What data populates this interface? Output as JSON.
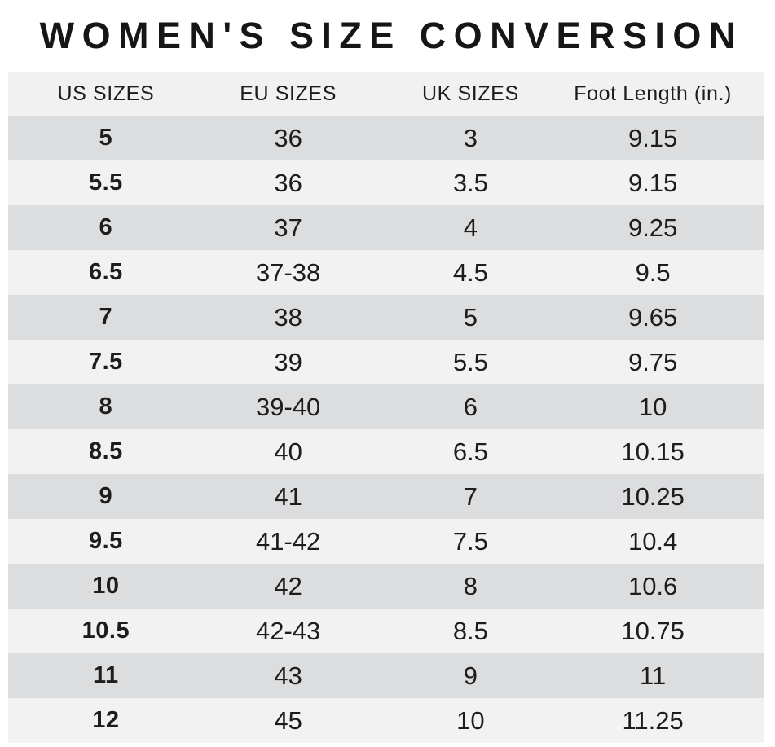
{
  "title": "WOMEN'S SIZE CONVERSION",
  "colors": {
    "header_bg": "#f1f1f2",
    "row_dark": "#dcddde",
    "row_light": "#f2f2f3",
    "title_color": "#161616",
    "text_color": "#1d1d1d"
  },
  "chart_data": {
    "type": "table",
    "title": "WOMEN'S SIZE CONVERSION",
    "columns": [
      "US SIZES",
      "EU SIZES",
      "UK SIZES",
      "Foot Length (in.)"
    ],
    "rows": [
      [
        "5",
        "36",
        "3",
        "9.15"
      ],
      [
        "5.5",
        "36",
        "3.5",
        "9.15"
      ],
      [
        "6",
        "37",
        "4",
        "9.25"
      ],
      [
        "6.5",
        "37-38",
        "4.5",
        "9.5"
      ],
      [
        "7",
        "38",
        "5",
        "9.65"
      ],
      [
        "7.5",
        "39",
        "5.5",
        "9.75"
      ],
      [
        "8",
        "39-40",
        "6",
        "10"
      ],
      [
        "8.5",
        "40",
        "6.5",
        "10.15"
      ],
      [
        "9",
        "41",
        "7",
        "10.25"
      ],
      [
        "9.5",
        "41-42",
        "7.5",
        "10.4"
      ],
      [
        "10",
        "42",
        "8",
        "10.6"
      ],
      [
        "10.5",
        "42-43",
        "8.5",
        "10.75"
      ],
      [
        "11",
        "43",
        "9",
        "11"
      ],
      [
        "12",
        "45",
        "10",
        "11.25"
      ]
    ]
  }
}
